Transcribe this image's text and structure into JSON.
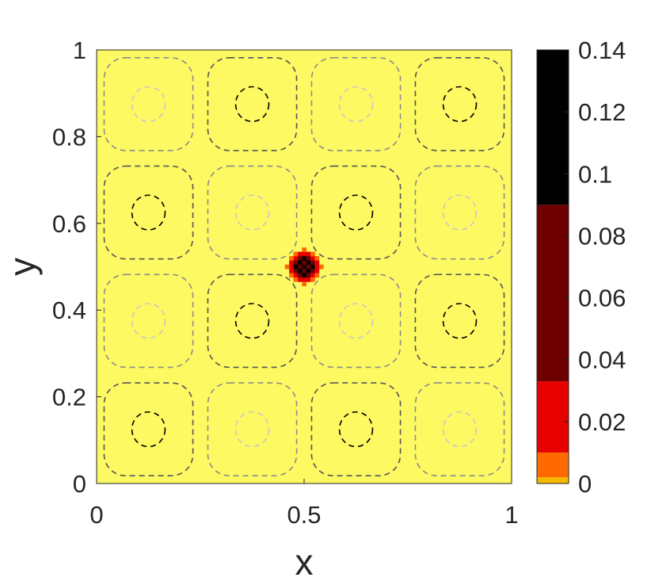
{
  "chart_data": [
    {
      "type": "heatmap",
      "description_of_field": "scalar field, near zero everywhere except a small diamond-shaped spot at (0.5, 0.5) peaking around 0.14",
      "xlabel": "x",
      "ylabel": "y",
      "xlim": [
        0,
        1
      ],
      "ylim": [
        0,
        1
      ],
      "xticks": [
        0,
        0.5,
        1
      ],
      "xtick_labels": [
        "0",
        "0.5",
        "1"
      ],
      "yticks": [
        0,
        0.2,
        0.4,
        0.6,
        0.8,
        1
      ],
      "ytick_labels": [
        "0",
        "0.2",
        "0.4",
        "0.6",
        "0.8",
        "1"
      ],
      "background_value": 0,
      "hotspot": {
        "center": [
          0.5,
          0.5
        ],
        "peak_value": 0.14,
        "cells": [
          {
            "dx": 0,
            "dy": 0,
            "v": 0.14
          },
          {
            "dx": 1,
            "dy": 0,
            "v": 0.09
          },
          {
            "dx": -1,
            "dy": 0,
            "v": 0.09
          },
          {
            "dx": 0,
            "dy": 1,
            "v": 0.09
          },
          {
            "dx": 0,
            "dy": -1,
            "v": 0.09
          },
          {
            "dx": 1,
            "dy": 1,
            "v": 0.14
          },
          {
            "dx": -1,
            "dy": 1,
            "v": 0.14
          },
          {
            "dx": 1,
            "dy": -1,
            "v": 0.14
          },
          {
            "dx": -1,
            "dy": -1,
            "v": 0.14
          },
          {
            "dx": 2,
            "dy": 0,
            "v": 0.14
          },
          {
            "dx": -2,
            "dy": 0,
            "v": 0.14
          },
          {
            "dx": 0,
            "dy": 2,
            "v": 0.14
          },
          {
            "dx": 0,
            "dy": -2,
            "v": 0.14
          },
          {
            "dx": 2,
            "dy": 1,
            "v": 0.05
          },
          {
            "dx": -2,
            "dy": 1,
            "v": 0.05
          },
          {
            "dx": 2,
            "dy": -1,
            "v": 0.05
          },
          {
            "dx": -2,
            "dy": -1,
            "v": 0.05
          },
          {
            "dx": 1,
            "dy": 2,
            "v": 0.05
          },
          {
            "dx": -1,
            "dy": 2,
            "v": 0.05
          },
          {
            "dx": 1,
            "dy": -2,
            "v": 0.05
          },
          {
            "dx": -1,
            "dy": -2,
            "v": 0.05
          },
          {
            "dx": 3,
            "dy": 0,
            "v": 0.02
          },
          {
            "dx": -3,
            "dy": 0,
            "v": 0.02
          },
          {
            "dx": 0,
            "dy": 3,
            "v": 0.02
          },
          {
            "dx": 0,
            "dy": -3,
            "v": 0.02
          },
          {
            "dx": 2,
            "dy": 2,
            "v": 0.02
          },
          {
            "dx": -2,
            "dy": 2,
            "v": 0.02
          },
          {
            "dx": 2,
            "dy": -2,
            "v": 0.02
          },
          {
            "dx": -2,
            "dy": -2,
            "v": 0.02
          },
          {
            "dx": 3,
            "dy": 1,
            "v": 0.02
          },
          {
            "dx": -3,
            "dy": 1,
            "v": 0.02
          },
          {
            "dx": 3,
            "dy": -1,
            "v": 0.02
          },
          {
            "dx": -3,
            "dy": -1,
            "v": 0.02
          },
          {
            "dx": 1,
            "dy": 3,
            "v": 0.02
          },
          {
            "dx": -1,
            "dy": 3,
            "v": 0.02
          },
          {
            "dx": 1,
            "dy": -3,
            "v": 0.02
          },
          {
            "dx": -1,
            "dy": -3,
            "v": 0.02
          },
          {
            "dx": 4,
            "dy": 0,
            "v": 0.01
          },
          {
            "dx": -4,
            "dy": 0,
            "v": 0.01
          },
          {
            "dx": 0,
            "dy": 4,
            "v": 0.01
          },
          {
            "dx": 0,
            "dy": -4,
            "v": 0.01
          },
          {
            "dx": 3,
            "dy": 2,
            "v": 0.01
          },
          {
            "dx": -3,
            "dy": 2,
            "v": 0.01
          },
          {
            "dx": 3,
            "dy": -2,
            "v": 0.01
          },
          {
            "dx": -3,
            "dy": -2,
            "v": 0.01
          },
          {
            "dx": 2,
            "dy": 3,
            "v": 0.01
          },
          {
            "dx": -2,
            "dy": 3,
            "v": 0.01
          },
          {
            "dx": 2,
            "dy": -3,
            "v": 0.01
          },
          {
            "dx": -2,
            "dy": -3,
            "v": 0.01
          }
        ]
      },
      "colorbar": {
        "range": [
          0,
          0.14
        ],
        "tick_values": [
          0,
          0.02,
          0.04,
          0.06,
          0.08,
          0.1,
          0.12,
          0.14
        ],
        "tick_labels": [
          "0",
          "0.02",
          "0.04",
          "0.06",
          "0.08",
          "0.1",
          "0.12",
          "0.14"
        ],
        "levels": [
          {
            "from": 0,
            "to": 0.002,
            "color": "#f5b800"
          },
          {
            "from": 0.002,
            "to": 0.01,
            "color": "#ff6a00"
          },
          {
            "from": 0.01,
            "to": 0.033,
            "color": "#e60000"
          },
          {
            "from": 0.033,
            "to": 0.09,
            "color": "#6e0000"
          },
          {
            "from": 0.09,
            "to": 0.14,
            "color": "#000000"
          }
        ],
        "background_color": "#fdf962"
      },
      "contour_overlay": {
        "style": "dashed",
        "cells_per_side": 4,
        "cell_centers_axis": [
          0.125,
          0.375,
          0.625,
          0.875
        ],
        "dark_cells": [
          [
            0,
            0
          ],
          [
            2,
            0
          ],
          [
            1,
            1
          ],
          [
            3,
            1
          ],
          [
            0,
            2
          ],
          [
            2,
            2
          ],
          [
            1,
            3
          ],
          [
            3,
            3
          ]
        ],
        "outer_ring_half_width": 0.107,
        "inner_ring_radius": 0.04,
        "dark_inner_color": "#000000",
        "dark_outer_color": "#555555",
        "light_inner_color": "#c8c8c8",
        "light_outer_color": "#8c8c8c"
      }
    }
  ]
}
